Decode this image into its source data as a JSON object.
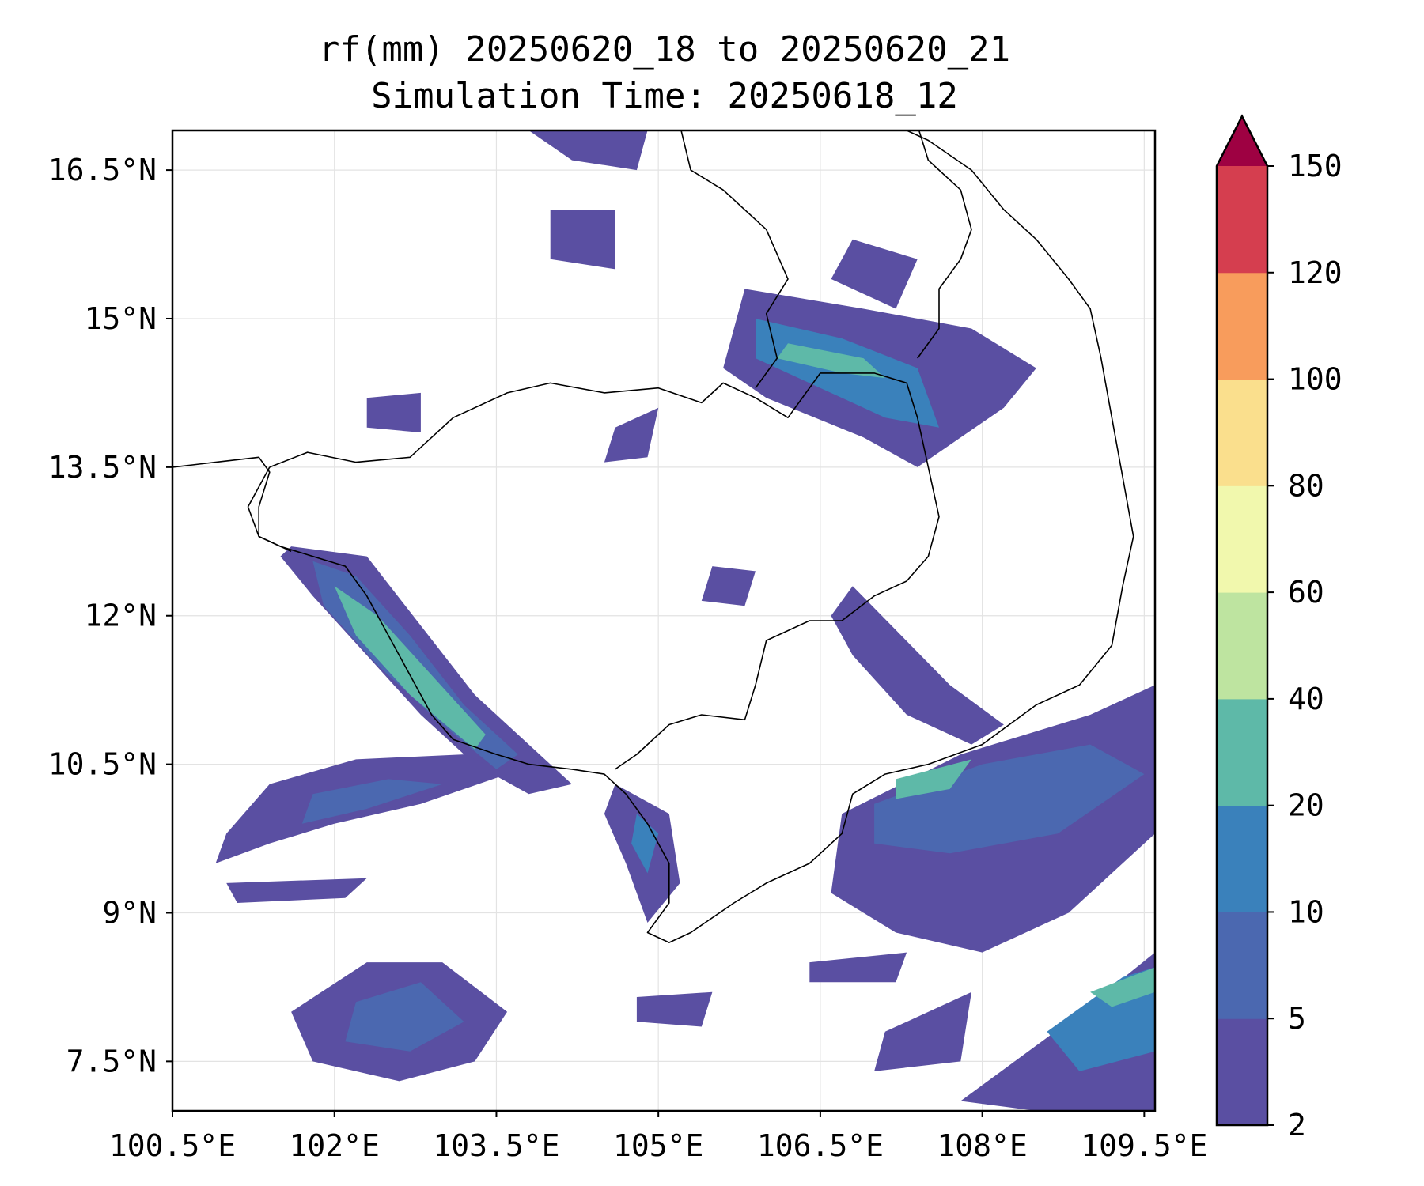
{
  "title_line1": "rf(mm) 20250620_18 to 20250620_21",
  "title_line2": "Simulation Time: 20250618_12",
  "map": {
    "lon_range": [
      100.5,
      109.6
    ],
    "lat_range": [
      7.0,
      16.9
    ],
    "lon_ticks": [
      {
        "value": 100.5,
        "label": "100.5°E"
      },
      {
        "value": 102.0,
        "label": "102°E"
      },
      {
        "value": 103.5,
        "label": "103.5°E"
      },
      {
        "value": 105.0,
        "label": "105°E"
      },
      {
        "value": 106.5,
        "label": "106.5°E"
      },
      {
        "value": 108.0,
        "label": "108°E"
      },
      {
        "value": 109.5,
        "label": "109.5°E"
      }
    ],
    "lat_ticks": [
      {
        "value": 16.5,
        "label": "16.5°N"
      },
      {
        "value": 15.0,
        "label": "15°N"
      },
      {
        "value": 13.5,
        "label": "13.5°N"
      },
      {
        "value": 12.0,
        "label": "12°N"
      },
      {
        "value": 10.5,
        "label": "10.5°N"
      },
      {
        "value": 9.0,
        "label": "9°N"
      },
      {
        "value": 7.5,
        "label": "7.5°N"
      }
    ],
    "gridlines": true,
    "borders": [
      [
        [
          100.5,
          13.5
        ],
        [
          100.9,
          13.55
        ],
        [
          101.3,
          13.6
        ],
        [
          101.4,
          13.45
        ],
        [
          101.3,
          13.1
        ],
        [
          101.3,
          12.8
        ],
        [
          101.5,
          12.7
        ],
        [
          101.8,
          12.6
        ],
        [
          102.1,
          12.5
        ],
        [
          102.3,
          12.2
        ],
        [
          102.5,
          11.8
        ],
        [
          102.7,
          11.4
        ],
        [
          102.9,
          11.0
        ],
        [
          103.1,
          10.75
        ],
        [
          103.5,
          10.6
        ],
        [
          103.8,
          10.5
        ],
        [
          104.2,
          10.45
        ],
        [
          104.5,
          10.4
        ],
        [
          104.7,
          10.2
        ],
        [
          104.9,
          9.9
        ],
        [
          105.1,
          9.5
        ],
        [
          105.1,
          9.1
        ],
        [
          104.9,
          8.8
        ],
        [
          105.1,
          8.7
        ],
        [
          105.3,
          8.8
        ],
        [
          105.7,
          9.1
        ],
        [
          106.0,
          9.3
        ],
        [
          106.4,
          9.5
        ],
        [
          106.7,
          9.8
        ],
        [
          106.8,
          10.2
        ],
        [
          107.1,
          10.4
        ],
        [
          107.5,
          10.5
        ],
        [
          108.0,
          10.7
        ],
        [
          108.5,
          11.1
        ],
        [
          108.9,
          11.3
        ],
        [
          109.2,
          11.7
        ],
        [
          109.3,
          12.3
        ],
        [
          109.4,
          12.8
        ],
        [
          109.3,
          13.4
        ],
        [
          109.2,
          14.0
        ],
        [
          109.1,
          14.6
        ],
        [
          109.0,
          15.1
        ],
        [
          108.8,
          15.4
        ],
        [
          108.5,
          15.8
        ],
        [
          108.2,
          16.1
        ],
        [
          107.9,
          16.5
        ],
        [
          107.5,
          16.8
        ],
        [
          107.2,
          16.95
        ]
      ],
      [
        [
          101.4,
          13.5
        ],
        [
          101.75,
          13.65
        ],
        [
          102.2,
          13.55
        ],
        [
          102.7,
          13.6
        ],
        [
          103.1,
          14.0
        ],
        [
          103.6,
          14.25
        ],
        [
          104.0,
          14.35
        ],
        [
          104.5,
          14.25
        ],
        [
          105.0,
          14.3
        ],
        [
          105.4,
          14.15
        ],
        [
          105.6,
          14.35
        ],
        [
          105.9,
          14.2
        ],
        [
          106.2,
          14.0
        ],
        [
          106.5,
          14.45
        ],
        [
          107.0,
          14.45
        ],
        [
          107.3,
          14.35
        ],
        [
          107.4,
          14.0
        ],
        [
          107.5,
          13.5
        ],
        [
          107.6,
          13.0
        ],
        [
          107.5,
          12.6
        ],
        [
          107.3,
          12.35
        ],
        [
          107.0,
          12.2
        ],
        [
          106.7,
          11.95
        ],
        [
          106.4,
          11.95
        ],
        [
          106.0,
          11.75
        ],
        [
          105.9,
          11.3
        ],
        [
          105.8,
          10.95
        ],
        [
          105.4,
          11.0
        ],
        [
          105.1,
          10.9
        ],
        [
          104.8,
          10.6
        ],
        [
          104.6,
          10.45
        ]
      ],
      [
        [
          105.2,
          16.95
        ],
        [
          105.3,
          16.5
        ],
        [
          105.6,
          16.3
        ],
        [
          106.0,
          15.9
        ],
        [
          106.2,
          15.4
        ],
        [
          106.0,
          15.05
        ],
        [
          106.1,
          14.6
        ],
        [
          105.9,
          14.3
        ]
      ],
      [
        [
          107.4,
          16.95
        ],
        [
          107.5,
          16.6
        ],
        [
          107.8,
          16.3
        ],
        [
          107.9,
          15.9
        ],
        [
          107.8,
          15.6
        ],
        [
          107.6,
          15.3
        ],
        [
          107.6,
          14.9
        ],
        [
          107.4,
          14.6
        ]
      ],
      [
        [
          101.4,
          13.5
        ],
        [
          101.2,
          13.1
        ],
        [
          101.3,
          12.8
        ],
        [
          101.6,
          12.65
        ]
      ]
    ],
    "rain_patches": [
      {
        "bin": "2-5",
        "points": [
          [
            101.6,
            12.7
          ],
          [
            102.3,
            12.6
          ],
          [
            102.8,
            11.9
          ],
          [
            103.3,
            11.2
          ],
          [
            103.9,
            10.6
          ],
          [
            104.2,
            10.3
          ],
          [
            103.8,
            10.2
          ],
          [
            103.3,
            10.5
          ],
          [
            102.8,
            11.0
          ],
          [
            102.3,
            11.6
          ],
          [
            101.8,
            12.2
          ],
          [
            101.5,
            12.6
          ]
        ]
      },
      {
        "bin": "5-10",
        "points": [
          [
            101.8,
            12.55
          ],
          [
            102.2,
            12.4
          ],
          [
            102.7,
            11.8
          ],
          [
            103.2,
            11.1
          ],
          [
            103.7,
            10.6
          ],
          [
            103.5,
            10.45
          ],
          [
            103.0,
            10.9
          ],
          [
            102.4,
            11.5
          ],
          [
            101.9,
            12.1
          ]
        ]
      },
      {
        "bin": "20-40",
        "points": [
          [
            102.0,
            12.3
          ],
          [
            102.4,
            12.0
          ],
          [
            102.9,
            11.4
          ],
          [
            103.4,
            10.8
          ],
          [
            103.3,
            10.65
          ],
          [
            102.7,
            11.2
          ],
          [
            102.2,
            11.8
          ]
        ]
      },
      {
        "bin": "2-5",
        "points": [
          [
            101.4,
            10.3
          ],
          [
            102.2,
            10.55
          ],
          [
            103.2,
            10.6
          ],
          [
            103.6,
            10.4
          ],
          [
            102.8,
            10.1
          ],
          [
            102.0,
            9.9
          ],
          [
            101.4,
            9.7
          ],
          [
            100.9,
            9.5
          ],
          [
            101.0,
            9.8
          ]
        ]
      },
      {
        "bin": "5-10",
        "points": [
          [
            101.8,
            10.2
          ],
          [
            102.5,
            10.35
          ],
          [
            103.0,
            10.3
          ],
          [
            102.3,
            10.05
          ],
          [
            101.7,
            9.9
          ]
        ]
      },
      {
        "bin": "2-5",
        "points": [
          [
            101.0,
            9.3
          ],
          [
            102.3,
            9.35
          ],
          [
            102.1,
            9.15
          ],
          [
            101.1,
            9.1
          ]
        ]
      },
      {
        "bin": "2-5",
        "points": [
          [
            101.6,
            8.0
          ],
          [
            102.3,
            8.5
          ],
          [
            103.0,
            8.5
          ],
          [
            103.6,
            8.0
          ],
          [
            103.3,
            7.5
          ],
          [
            102.6,
            7.3
          ],
          [
            101.8,
            7.5
          ]
        ]
      },
      {
        "bin": "5-10",
        "points": [
          [
            102.2,
            8.1
          ],
          [
            102.8,
            8.3
          ],
          [
            103.2,
            7.9
          ],
          [
            102.7,
            7.6
          ],
          [
            102.1,
            7.7
          ]
        ]
      },
      {
        "bin": "2-5",
        "points": [
          [
            104.6,
            10.3
          ],
          [
            105.1,
            10.0
          ],
          [
            105.2,
            9.3
          ],
          [
            104.9,
            8.9
          ],
          [
            104.7,
            9.5
          ],
          [
            104.5,
            10.0
          ]
        ]
      },
      {
        "bin": "10-20",
        "points": [
          [
            104.8,
            10.0
          ],
          [
            105.0,
            9.8
          ],
          [
            104.9,
            9.4
          ],
          [
            104.75,
            9.7
          ]
        ]
      },
      {
        "bin": "2-5",
        "points": [
          [
            105.8,
            15.3
          ],
          [
            106.9,
            15.1
          ],
          [
            107.9,
            14.9
          ],
          [
            108.5,
            14.5
          ],
          [
            108.2,
            14.1
          ],
          [
            107.4,
            13.5
          ],
          [
            106.9,
            13.8
          ],
          [
            106.0,
            14.2
          ],
          [
            105.6,
            14.5
          ]
        ]
      },
      {
        "bin": "10-20",
        "points": [
          [
            105.9,
            15.0
          ],
          [
            106.7,
            14.8
          ],
          [
            107.4,
            14.5
          ],
          [
            107.6,
            13.9
          ],
          [
            107.1,
            14.0
          ],
          [
            106.5,
            14.3
          ],
          [
            105.9,
            14.6
          ]
        ]
      },
      {
        "bin": "20-40",
        "points": [
          [
            106.2,
            14.75
          ],
          [
            106.9,
            14.6
          ],
          [
            107.1,
            14.4
          ],
          [
            106.7,
            14.45
          ],
          [
            106.1,
            14.6
          ]
        ]
      },
      {
        "bin": "2-5",
        "points": [
          [
            106.8,
            12.3
          ],
          [
            107.7,
            11.3
          ],
          [
            108.2,
            10.9
          ],
          [
            107.9,
            10.7
          ],
          [
            107.3,
            11.0
          ],
          [
            106.8,
            11.6
          ],
          [
            106.6,
            12.0
          ]
        ]
      },
      {
        "bin": "2-5",
        "points": [
          [
            106.7,
            10.0
          ],
          [
            107.8,
            10.6
          ],
          [
            109.0,
            11.0
          ],
          [
            109.6,
            11.3
          ],
          [
            109.6,
            9.8
          ],
          [
            108.8,
            9.0
          ],
          [
            108.0,
            8.6
          ],
          [
            107.2,
            8.8
          ],
          [
            106.6,
            9.2
          ]
        ]
      },
      {
        "bin": "5-10",
        "points": [
          [
            107.0,
            10.1
          ],
          [
            108.0,
            10.5
          ],
          [
            109.0,
            10.7
          ],
          [
            109.5,
            10.4
          ],
          [
            108.7,
            9.8
          ],
          [
            107.7,
            9.6
          ],
          [
            107.0,
            9.7
          ]
        ]
      },
      {
        "bin": "20-40",
        "points": [
          [
            107.2,
            10.35
          ],
          [
            107.9,
            10.55
          ],
          [
            107.7,
            10.25
          ],
          [
            107.2,
            10.15
          ]
        ]
      },
      {
        "bin": "2-5",
        "points": [
          [
            107.8,
            7.1
          ],
          [
            108.8,
            7.9
          ],
          [
            109.6,
            8.6
          ],
          [
            109.6,
            7.0
          ],
          [
            108.5,
            7.0
          ]
        ]
      },
      {
        "bin": "10-20",
        "points": [
          [
            108.6,
            7.8
          ],
          [
            109.3,
            8.35
          ],
          [
            109.6,
            8.45
          ],
          [
            109.6,
            7.6
          ],
          [
            108.9,
            7.4
          ]
        ]
      },
      {
        "bin": "20-40",
        "points": [
          [
            109.0,
            8.2
          ],
          [
            109.6,
            8.45
          ],
          [
            109.6,
            8.2
          ],
          [
            109.2,
            8.05
          ]
        ]
      },
      {
        "bin": "2-5",
        "points": [
          [
            102.3,
            14.2
          ],
          [
            102.8,
            14.25
          ],
          [
            102.8,
            13.85
          ],
          [
            102.3,
            13.9
          ]
        ]
      },
      {
        "bin": "2-5",
        "points": [
          [
            104.0,
            16.1
          ],
          [
            104.6,
            16.1
          ],
          [
            104.6,
            15.5
          ],
          [
            104.0,
            15.6
          ]
        ]
      },
      {
        "bin": "2-5",
        "points": [
          [
            104.6,
            13.9
          ],
          [
            105.0,
            14.1
          ],
          [
            104.9,
            13.6
          ],
          [
            104.5,
            13.55
          ]
        ]
      },
      {
        "bin": "2-5",
        "points": [
          [
            105.5,
            12.5
          ],
          [
            105.9,
            12.45
          ],
          [
            105.8,
            12.1
          ],
          [
            105.4,
            12.15
          ]
        ]
      },
      {
        "bin": "2-5",
        "points": [
          [
            103.8,
            16.9
          ],
          [
            104.9,
            16.9
          ],
          [
            104.8,
            16.5
          ],
          [
            104.2,
            16.6
          ]
        ]
      },
      {
        "bin": "2-5",
        "points": [
          [
            104.8,
            8.15
          ],
          [
            105.5,
            8.2
          ],
          [
            105.4,
            7.85
          ],
          [
            104.8,
            7.9
          ]
        ]
      },
      {
        "bin": "2-5",
        "points": [
          [
            106.4,
            8.5
          ],
          [
            107.3,
            8.6
          ],
          [
            107.2,
            8.3
          ],
          [
            106.4,
            8.3
          ]
        ]
      },
      {
        "bin": "2-5",
        "points": [
          [
            107.1,
            7.8
          ],
          [
            107.9,
            8.2
          ],
          [
            107.8,
            7.5
          ],
          [
            107.0,
            7.4
          ]
        ]
      },
      {
        "bin": "2-5",
        "points": [
          [
            106.8,
            15.8
          ],
          [
            107.4,
            15.6
          ],
          [
            107.2,
            15.1
          ],
          [
            106.6,
            15.4
          ]
        ]
      }
    ]
  },
  "colorbar": {
    "bins": [
      {
        "label": "2-5",
        "color": "#5a4fa2"
      },
      {
        "label": "5-10",
        "color": "#4b68b0"
      },
      {
        "label": "10-20",
        "color": "#3a81bb"
      },
      {
        "label": "20-40",
        "color": "#5eb9a8"
      },
      {
        "label": "40-60",
        "color": "#bee4a0"
      },
      {
        "label": "60-80",
        "color": "#f1f8ad"
      },
      {
        "label": "80-100",
        "color": "#fadf8d"
      },
      {
        "label": "100-120",
        "color": "#f89c5c"
      },
      {
        "label": "120-150",
        "color": "#d53e4f"
      }
    ],
    "extend_color": "#9e0142",
    "tick_labels": [
      "2",
      "5",
      "10",
      "20",
      "40",
      "60",
      "80",
      "100",
      "120",
      "150"
    ]
  }
}
